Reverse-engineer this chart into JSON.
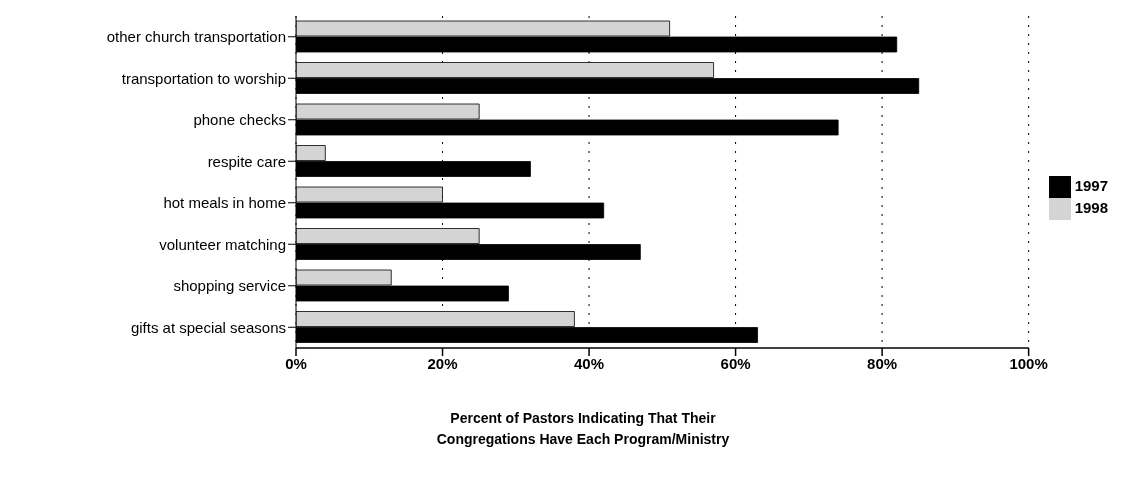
{
  "chart_data": {
    "type": "bar",
    "orientation": "horizontal",
    "categories": [
      "other church transportation",
      "transportation to worship",
      "phone checks",
      "respite care",
      "hot meals in home",
      "volunteer matching",
      "shopping service",
      "gifts at special seasons"
    ],
    "series": [
      {
        "name": "1998",
        "color": "#d4d4d4",
        "values": [
          51,
          57,
          25,
          4,
          20,
          25,
          13,
          38
        ]
      },
      {
        "name": "1997",
        "color": "#000000",
        "values": [
          82,
          85,
          74,
          32,
          42,
          47,
          29,
          63
        ]
      }
    ],
    "xlim": [
      0,
      100
    ],
    "xticks": [
      {
        "value": 0,
        "label": "0%"
      },
      {
        "value": 20,
        "label": "20%"
      },
      {
        "value": 40,
        "label": "40%"
      },
      {
        "value": 60,
        "label": "60%"
      },
      {
        "value": 80,
        "label": "80%"
      },
      {
        "value": 100,
        "label": "100%"
      }
    ],
    "xlabel": "Percent of Pastors Indicating That Their Congregations Have Each Program/Ministry",
    "grid": "x",
    "legend": "right"
  }
}
